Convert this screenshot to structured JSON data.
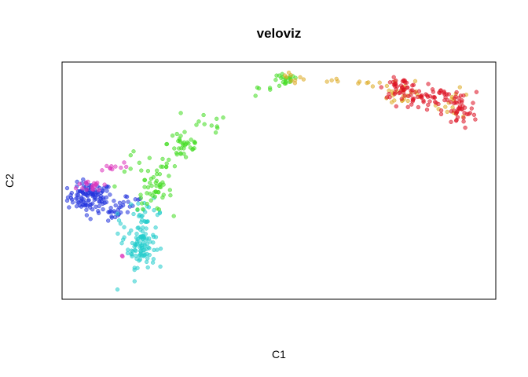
{
  "chart_data": {
    "type": "scatter",
    "title": "veloviz",
    "xlabel": "C1",
    "ylabel": "C2",
    "axes_visible": false,
    "grid": false,
    "xlim": [
      0,
      100
    ],
    "ylim": [
      0,
      100
    ],
    "point_opacity": 0.55,
    "series": [
      {
        "color": "#2233dd",
        "clusters": [
          {
            "cx": 6,
            "cy": 43,
            "sx": 2.6,
            "sy": 3.0,
            "n": 110
          },
          {
            "cx": 10,
            "cy": 37,
            "sx": 2.5,
            "sy": 2.5,
            "n": 25
          },
          {
            "cx": 15,
            "cy": 41,
            "sx": 2.0,
            "sy": 2.0,
            "n": 10
          }
        ]
      },
      {
        "color": "#dd33bb",
        "clusters": [
          {
            "cx": 7,
            "cy": 48,
            "sx": 2.0,
            "sy": 1.5,
            "n": 18
          },
          {
            "cx": 11,
            "cy": 56,
            "sx": 2.0,
            "sy": 1.2,
            "n": 10
          },
          {
            "cx": 13.5,
            "cy": 17,
            "sx": 0.8,
            "sy": 0.8,
            "n": 2
          }
        ]
      },
      {
        "color": "#22cccc",
        "clusters": [
          {
            "cx": 18,
            "cy": 22,
            "sx": 1.6,
            "sy": 4.5,
            "n": 95
          },
          {
            "cx": 19,
            "cy": 36,
            "sx": 2.0,
            "sy": 3.0,
            "n": 25
          },
          {
            "cx": 13,
            "cy": 30,
            "sx": 1.0,
            "sy": 3.0,
            "n": 6
          },
          {
            "cx": 12.5,
            "cy": 3,
            "sx": 0.3,
            "sy": 0.3,
            "n": 1
          }
        ]
      },
      {
        "color": "#44dd22",
        "clusters": [
          {
            "cx": 21,
            "cy": 45,
            "sx": 2.0,
            "sy": 4.0,
            "n": 40
          },
          {
            "cx": 28,
            "cy": 66,
            "sx": 2.0,
            "sy": 4.0,
            "n": 35
          },
          {
            "cx": 33,
            "cy": 74,
            "sx": 2.5,
            "sy": 2.0,
            "n": 10
          },
          {
            "cx": 51.5,
            "cy": 93,
            "sx": 1.5,
            "sy": 1.5,
            "n": 22
          },
          {
            "cx": 17,
            "cy": 52,
            "sx": 2.0,
            "sy": 5.0,
            "n": 12
          },
          {
            "cx": 24,
            "cy": 57,
            "sx": 1.5,
            "sy": 3.0,
            "n": 10
          },
          {
            "cx": 46,
            "cy": 88,
            "sx": 2.0,
            "sy": 1.5,
            "n": 5
          }
        ]
      },
      {
        "color": "#ddaa22",
        "clusters": [
          {
            "cx": 52,
            "cy": 94,
            "sx": 1.0,
            "sy": 1.0,
            "n": 5
          },
          {
            "cx": 56,
            "cy": 94,
            "sx": 1.0,
            "sy": 0.8,
            "n": 4
          },
          {
            "cx": 63,
            "cy": 93,
            "sx": 2.0,
            "sy": 0.6,
            "n": 4
          },
          {
            "cx": 71,
            "cy": 92,
            "sx": 2.5,
            "sy": 1.0,
            "n": 6
          },
          {
            "cx": 79,
            "cy": 88,
            "sx": 2.5,
            "sy": 2.5,
            "n": 25
          },
          {
            "cx": 91,
            "cy": 83,
            "sx": 2.0,
            "sy": 3.0,
            "n": 15
          }
        ]
      },
      {
        "color": "#dd1122",
        "clusters": [
          {
            "cx": 78.5,
            "cy": 90,
            "sx": 2.0,
            "sy": 2.0,
            "n": 45
          },
          {
            "cx": 83,
            "cy": 85,
            "sx": 2.5,
            "sy": 2.0,
            "n": 30
          },
          {
            "cx": 92,
            "cy": 80,
            "sx": 2.0,
            "sy": 4.0,
            "n": 45
          },
          {
            "cx": 88,
            "cy": 88,
            "sx": 2.0,
            "sy": 1.5,
            "n": 12
          }
        ]
      }
    ]
  }
}
